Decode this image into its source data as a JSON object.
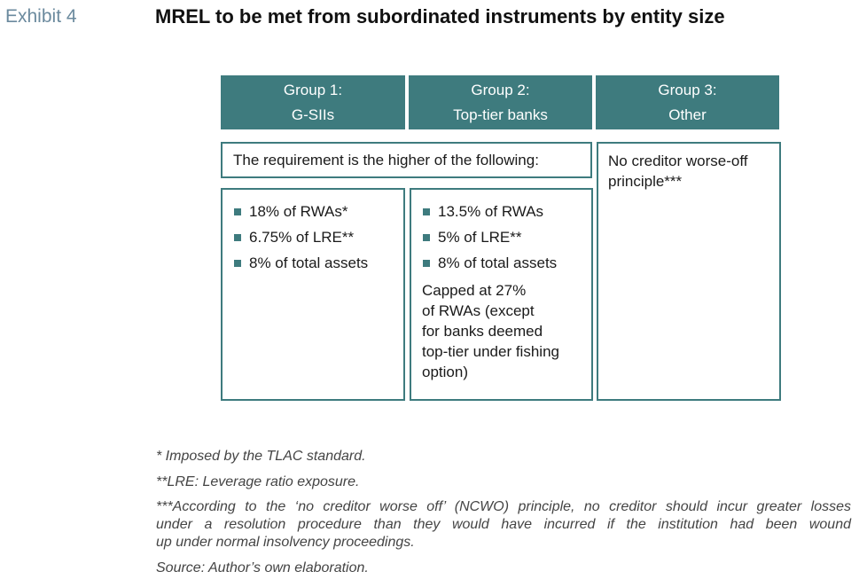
{
  "exhibit": "Exhibit 4",
  "title": "MREL to be met from subordinated instruments by entity size",
  "headers": [
    {
      "line1": "Group 1:",
      "line2": "G-SIIs"
    },
    {
      "line1": "Group 2:",
      "line2": "Top-tier banks"
    },
    {
      "line1": "Group 3:",
      "line2": "Other"
    }
  ],
  "requirement_text": "The requirement is the higher of the following:",
  "group1": {
    "items": [
      "18% of RWAs*",
      "6.75% of LRE**",
      "8% of total assets"
    ]
  },
  "group2": {
    "items": [
      "13.5% of RWAs",
      "5% of LRE**",
      "8% of total assets"
    ],
    "cap_lines": [
      "Capped at 27%",
      "of RWAs (except",
      "for banks deemed",
      "top-tier under fishing",
      "option)"
    ]
  },
  "group3": {
    "lines": [
      "No creditor worse-off",
      "principle***"
    ]
  },
  "colors": {
    "teal": "#3e7b7e",
    "exhibit": "#6b8a9e"
  },
  "notes": {
    "n1": "* Imposed by the TLAC standard.",
    "n2": "**LRE: Leverage ratio exposure.",
    "n3_lines": [
      "***According to the ‘no creditor worse off’ (NCWO) principle, no creditor should incur greater losses",
      "under a resolution procedure than they would have incurred if the institution had been wound",
      "up under normal insolvency proceedings."
    ],
    "source": "Source: Author’s own elaboration."
  }
}
